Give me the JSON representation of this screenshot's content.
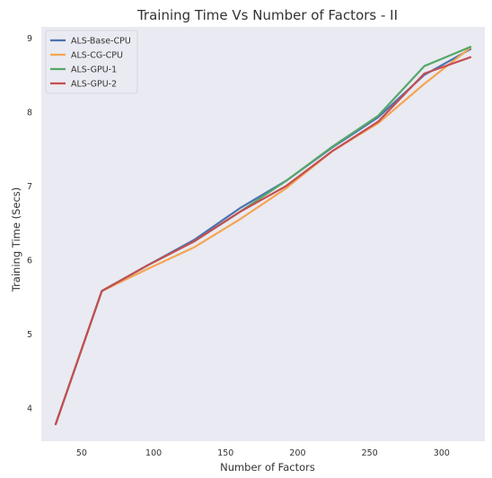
{
  "chart_data": {
    "type": "line",
    "title": "Training Time Vs Number of Factors - II",
    "xlabel": "Number of Factors",
    "ylabel": "Training Time (Secs)",
    "xlim": [
      22,
      330
    ],
    "ylim": [
      3.55,
      9.15
    ],
    "xticks": [
      50,
      100,
      150,
      200,
      250,
      300
    ],
    "yticks": [
      4,
      5,
      6,
      7,
      8,
      9
    ],
    "grid": false,
    "background": "#eaeaf2",
    "legend_position": "top-left",
    "x": [
      32,
      64,
      96,
      128,
      160,
      192,
      224,
      256,
      288,
      320
    ],
    "series": [
      {
        "name": "ALS-Base-CPU",
        "color": "#4c72b0",
        "values": [
          3.78,
          5.58,
          5.93,
          6.27,
          6.7,
          7.07,
          7.52,
          7.93,
          8.5,
          8.85
        ]
      },
      {
        "name": "ALS-CG-CPU",
        "color": "#f5a553",
        "values": [
          3.78,
          5.58,
          5.88,
          6.17,
          6.55,
          6.97,
          7.47,
          7.85,
          8.38,
          8.87
        ]
      },
      {
        "name": "ALS-GPU-1",
        "color": "#55a868",
        "values": [
          3.78,
          5.58,
          5.93,
          6.25,
          6.65,
          7.07,
          7.53,
          7.95,
          8.62,
          8.88
        ]
      },
      {
        "name": "ALS-GPU-2",
        "color": "#c44e52",
        "values": [
          3.78,
          5.58,
          5.93,
          6.25,
          6.65,
          7.0,
          7.47,
          7.87,
          8.52,
          8.74
        ]
      }
    ]
  }
}
